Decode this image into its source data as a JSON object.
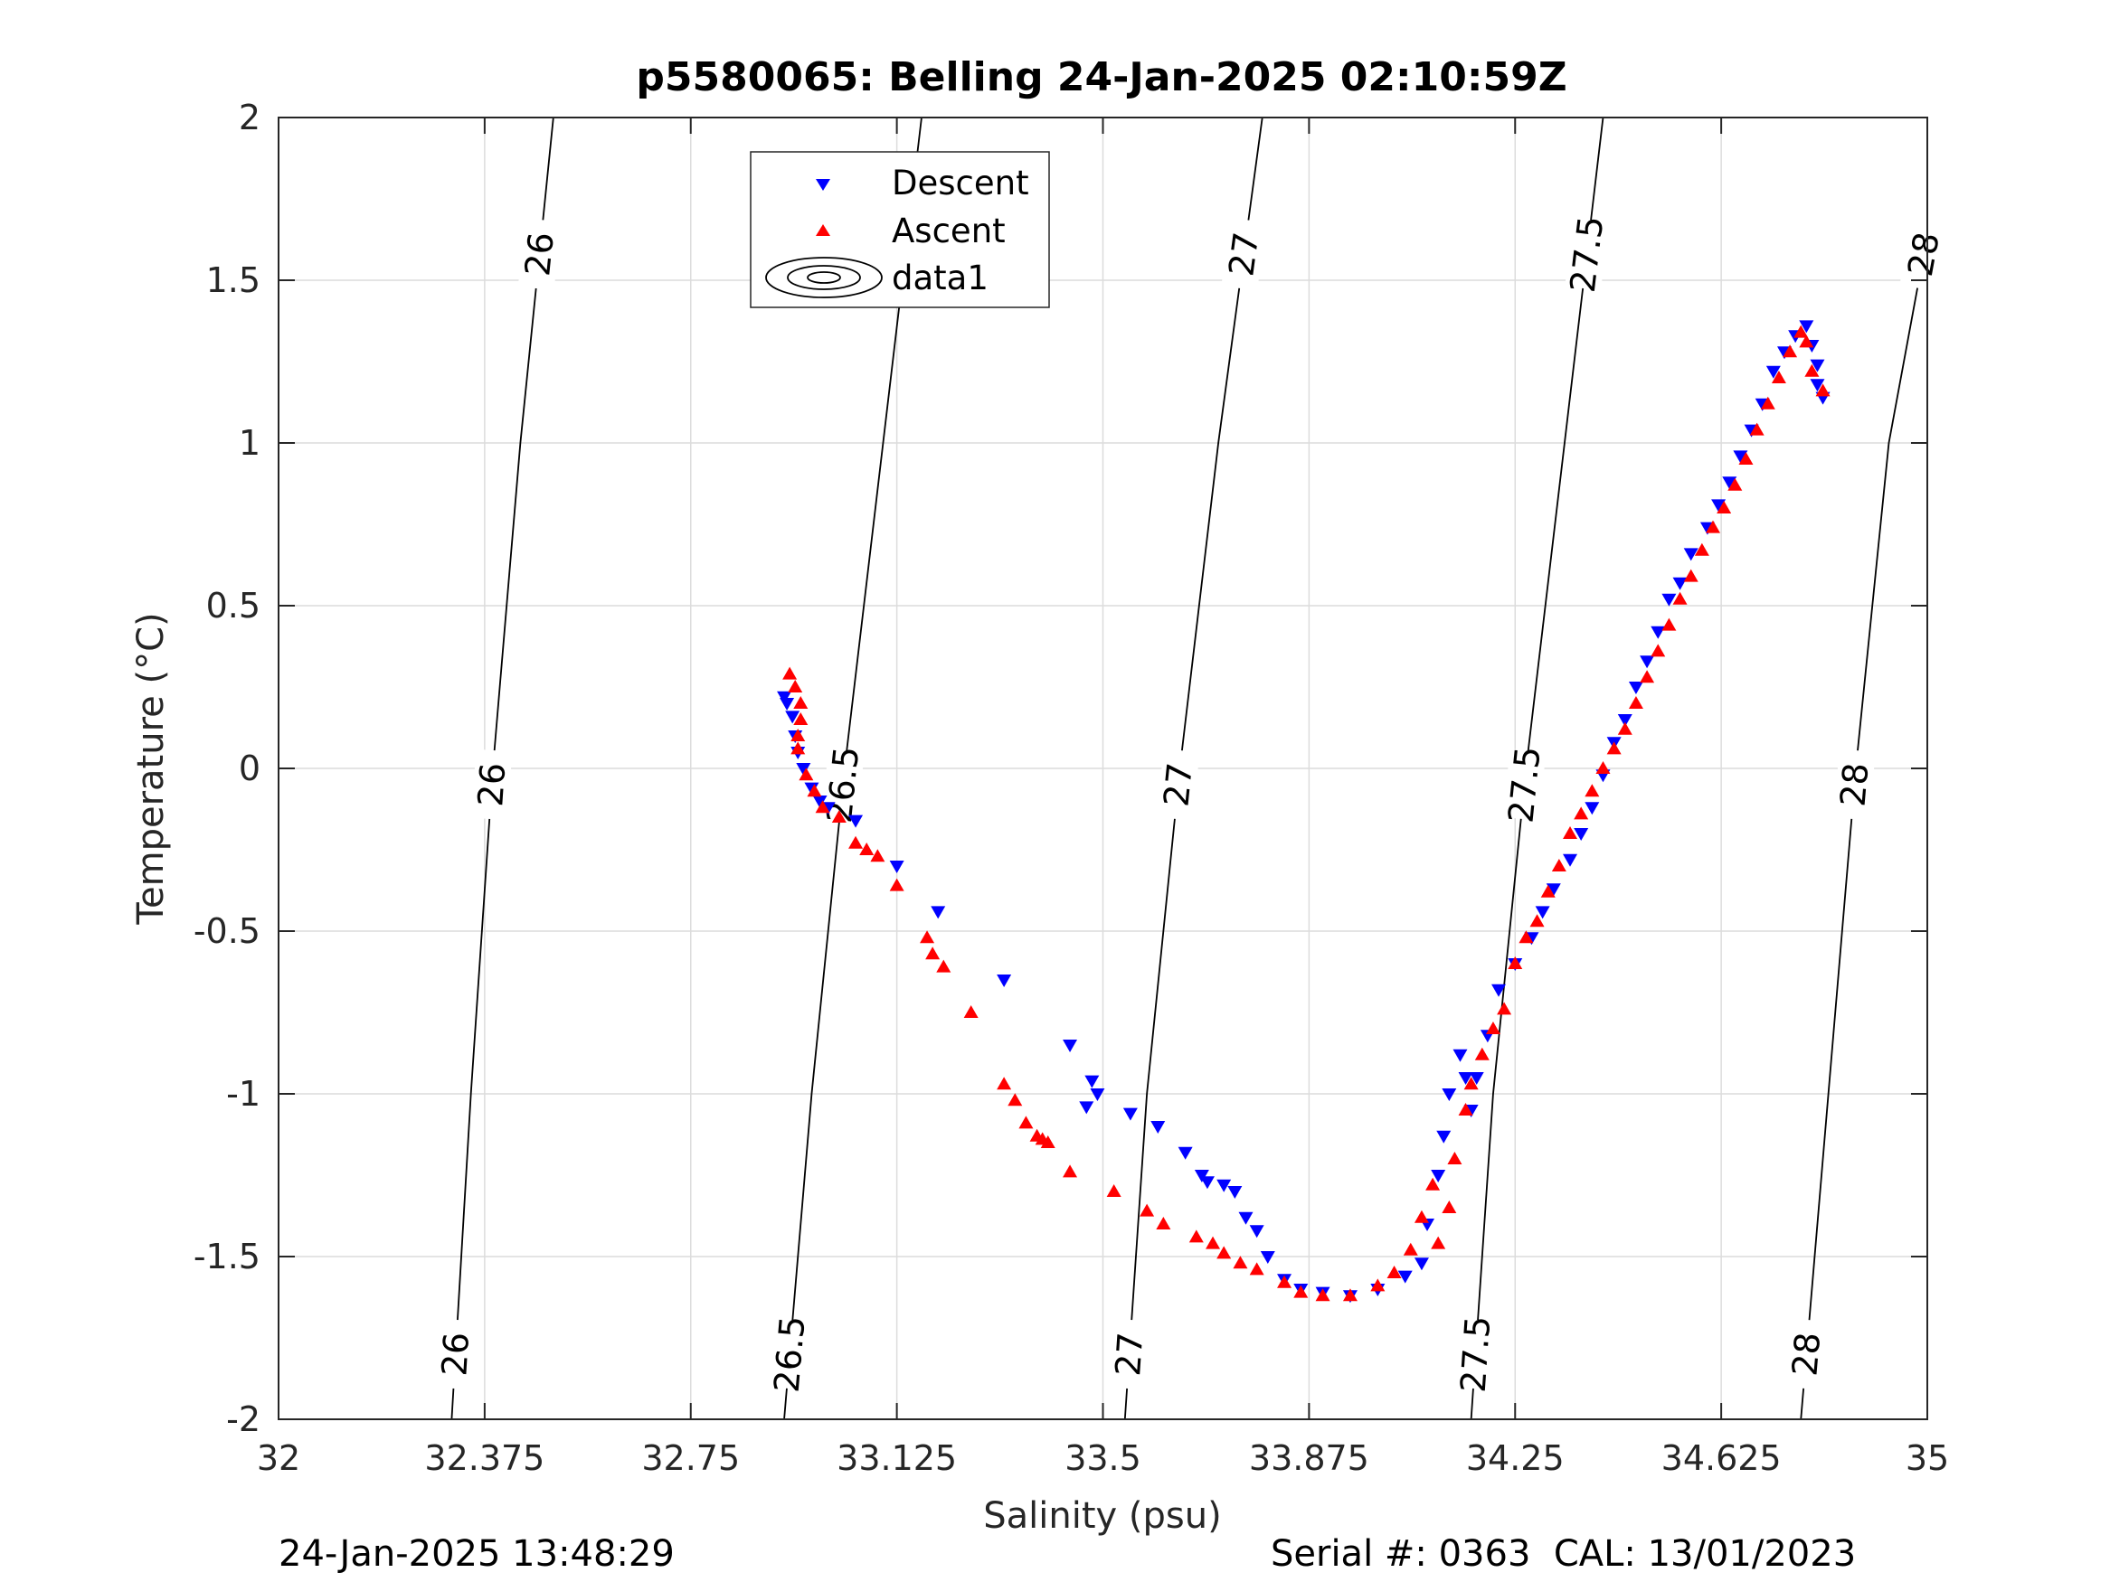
{
  "chart_data": {
    "type": "scatter",
    "title": "p5580065: Belling 24-Jan-2025 02:10:59Z",
    "xlabel": "Salinity (psu)",
    "ylabel": "Temperature (°C)",
    "xlim": [
      32,
      35
    ],
    "ylim": [
      -2,
      2
    ],
    "xticks": [
      "32",
      "32.375",
      "32.75",
      "33.125",
      "33.5",
      "33.875",
      "34.25",
      "34.625",
      "35"
    ],
    "yticks": [
      "-2",
      "-1.5",
      "-1",
      "-0.5",
      "0",
      "0.5",
      "1",
      "1.5",
      "2"
    ],
    "grid": true,
    "legend_position": "top-center",
    "legend": [
      "Descent",
      "Ascent",
      "data1"
    ],
    "series": [
      {
        "name": "Descent",
        "marker": "triangle-down",
        "color": "#0000ff",
        "points": [
          [
            32.92,
            0.22
          ],
          [
            32.925,
            0.2
          ],
          [
            32.935,
            0.16
          ],
          [
            32.94,
            0.1
          ],
          [
            32.945,
            0.05
          ],
          [
            32.955,
            0.0
          ],
          [
            32.97,
            -0.06
          ],
          [
            32.985,
            -0.1
          ],
          [
            33.0,
            -0.12
          ],
          [
            33.05,
            -0.16
          ],
          [
            33.125,
            -0.3
          ],
          [
            33.2,
            -0.44
          ],
          [
            33.32,
            -0.65
          ],
          [
            33.44,
            -0.85
          ],
          [
            33.48,
            -0.96
          ],
          [
            33.49,
            -1.0
          ],
          [
            33.47,
            -1.04
          ],
          [
            33.55,
            -1.06
          ],
          [
            33.6,
            -1.1
          ],
          [
            33.65,
            -1.18
          ],
          [
            33.68,
            -1.25
          ],
          [
            33.69,
            -1.27
          ],
          [
            33.72,
            -1.28
          ],
          [
            33.74,
            -1.3
          ],
          [
            33.76,
            -1.38
          ],
          [
            33.78,
            -1.42
          ],
          [
            33.8,
            -1.5
          ],
          [
            33.83,
            -1.57
          ],
          [
            33.86,
            -1.6
          ],
          [
            33.9,
            -1.61
          ],
          [
            33.95,
            -1.62
          ],
          [
            34.0,
            -1.6
          ],
          [
            34.05,
            -1.56
          ],
          [
            34.08,
            -1.52
          ],
          [
            34.09,
            -1.4
          ],
          [
            34.11,
            -1.25
          ],
          [
            34.12,
            -1.13
          ],
          [
            34.13,
            -1.0
          ],
          [
            34.15,
            -0.88
          ],
          [
            34.16,
            -0.95
          ],
          [
            34.17,
            -1.05
          ],
          [
            34.18,
            -0.95
          ],
          [
            34.2,
            -0.82
          ],
          [
            34.22,
            -0.68
          ],
          [
            34.25,
            -0.6
          ],
          [
            34.28,
            -0.52
          ],
          [
            34.3,
            -0.44
          ],
          [
            34.32,
            -0.37
          ],
          [
            34.35,
            -0.28
          ],
          [
            34.37,
            -0.2
          ],
          [
            34.39,
            -0.12
          ],
          [
            34.41,
            -0.02
          ],
          [
            34.43,
            0.08
          ],
          [
            34.45,
            0.15
          ],
          [
            34.47,
            0.25
          ],
          [
            34.49,
            0.33
          ],
          [
            34.51,
            0.42
          ],
          [
            34.53,
            0.52
          ],
          [
            34.55,
            0.57
          ],
          [
            34.57,
            0.66
          ],
          [
            34.6,
            0.74
          ],
          [
            34.62,
            0.81
          ],
          [
            34.64,
            0.88
          ],
          [
            34.66,
            0.96
          ],
          [
            34.68,
            1.04
          ],
          [
            34.7,
            1.12
          ],
          [
            34.72,
            1.22
          ],
          [
            34.74,
            1.28
          ],
          [
            34.76,
            1.33
          ],
          [
            34.78,
            1.36
          ],
          [
            34.79,
            1.3
          ],
          [
            34.8,
            1.24
          ],
          [
            34.8,
            1.18
          ],
          [
            34.81,
            1.14
          ]
        ]
      },
      {
        "name": "Ascent",
        "marker": "triangle-up",
        "color": "#ff0000",
        "points": [
          [
            32.93,
            0.29
          ],
          [
            32.94,
            0.25
          ],
          [
            32.95,
            0.2
          ],
          [
            32.95,
            0.15
          ],
          [
            32.945,
            0.1
          ],
          [
            32.945,
            0.06
          ],
          [
            32.96,
            -0.02
          ],
          [
            32.975,
            -0.07
          ],
          [
            32.99,
            -0.12
          ],
          [
            33.02,
            -0.15
          ],
          [
            33.05,
            -0.23
          ],
          [
            33.07,
            -0.25
          ],
          [
            33.09,
            -0.27
          ],
          [
            33.125,
            -0.36
          ],
          [
            33.18,
            -0.52
          ],
          [
            33.19,
            -0.57
          ],
          [
            33.21,
            -0.61
          ],
          [
            33.26,
            -0.75
          ],
          [
            33.32,
            -0.97
          ],
          [
            33.34,
            -1.02
          ],
          [
            33.36,
            -1.09
          ],
          [
            33.38,
            -1.13
          ],
          [
            33.39,
            -1.14
          ],
          [
            33.4,
            -1.15
          ],
          [
            33.44,
            -1.24
          ],
          [
            33.52,
            -1.3
          ],
          [
            33.58,
            -1.36
          ],
          [
            33.61,
            -1.4
          ],
          [
            33.67,
            -1.44
          ],
          [
            33.7,
            -1.46
          ],
          [
            33.72,
            -1.49
          ],
          [
            33.75,
            -1.52
          ],
          [
            33.78,
            -1.54
          ],
          [
            33.83,
            -1.58
          ],
          [
            33.86,
            -1.61
          ],
          [
            33.9,
            -1.62
          ],
          [
            33.95,
            -1.62
          ],
          [
            34.0,
            -1.59
          ],
          [
            34.03,
            -1.55
          ],
          [
            34.06,
            -1.48
          ],
          [
            34.08,
            -1.38
          ],
          [
            34.1,
            -1.28
          ],
          [
            34.11,
            -1.46
          ],
          [
            34.13,
            -1.35
          ],
          [
            34.14,
            -1.2
          ],
          [
            34.16,
            -1.05
          ],
          [
            34.17,
            -0.97
          ],
          [
            34.19,
            -0.88
          ],
          [
            34.21,
            -0.8
          ],
          [
            34.23,
            -0.74
          ],
          [
            34.25,
            -0.6
          ],
          [
            34.27,
            -0.52
          ],
          [
            34.29,
            -0.47
          ],
          [
            34.31,
            -0.38
          ],
          [
            34.33,
            -0.3
          ],
          [
            34.35,
            -0.2
          ],
          [
            34.37,
            -0.14
          ],
          [
            34.39,
            -0.07
          ],
          [
            34.41,
            0.0
          ],
          [
            34.43,
            0.06
          ],
          [
            34.45,
            0.12
          ],
          [
            34.47,
            0.2
          ],
          [
            34.49,
            0.28
          ],
          [
            34.51,
            0.36
          ],
          [
            34.53,
            0.44
          ],
          [
            34.55,
            0.52
          ],
          [
            34.57,
            0.59
          ],
          [
            34.59,
            0.67
          ],
          [
            34.61,
            0.74
          ],
          [
            34.63,
            0.8
          ],
          [
            34.65,
            0.87
          ],
          [
            34.67,
            0.95
          ],
          [
            34.69,
            1.04
          ],
          [
            34.71,
            1.12
          ],
          [
            34.73,
            1.2
          ],
          [
            34.75,
            1.28
          ],
          [
            34.77,
            1.34
          ],
          [
            34.78,
            1.31
          ],
          [
            34.79,
            1.22
          ],
          [
            34.81,
            1.16
          ]
        ]
      }
    ],
    "contours": [
      {
        "label": "26",
        "points": [
          [
            32.315,
            -2
          ],
          [
            32.35,
            -1.0
          ],
          [
            32.39,
            0.0
          ],
          [
            32.44,
            1.0
          ],
          [
            32.5,
            2
          ]
        ]
      },
      {
        "label": "26.5",
        "points": [
          [
            32.92,
            -2
          ],
          [
            32.97,
            -1.0
          ],
          [
            33.03,
            0.0
          ],
          [
            33.1,
            1.0
          ],
          [
            33.17,
            2
          ]
        ]
      },
      {
        "label": "27",
        "points": [
          [
            33.54,
            -2
          ],
          [
            33.58,
            -1.0
          ],
          [
            33.64,
            0.0
          ],
          [
            33.71,
            1.0
          ],
          [
            33.79,
            2
          ]
        ]
      },
      {
        "label": "27.5",
        "points": [
          [
            34.17,
            -2
          ],
          [
            34.21,
            -1.0
          ],
          [
            34.27,
            0.0
          ],
          [
            34.34,
            1.0
          ],
          [
            34.41,
            2
          ]
        ]
      },
      {
        "label": "28",
        "points": [
          [
            34.77,
            -2
          ],
          [
            34.82,
            -1.0
          ],
          [
            34.87,
            0.0
          ],
          [
            34.93,
            1.0
          ],
          [
            35.0,
            1.64
          ]
        ]
      }
    ]
  },
  "footer": {
    "timestamp": "24-Jan-2025 13:48:29",
    "serial": "Serial #: 0363  CAL: 13/01/2023"
  }
}
